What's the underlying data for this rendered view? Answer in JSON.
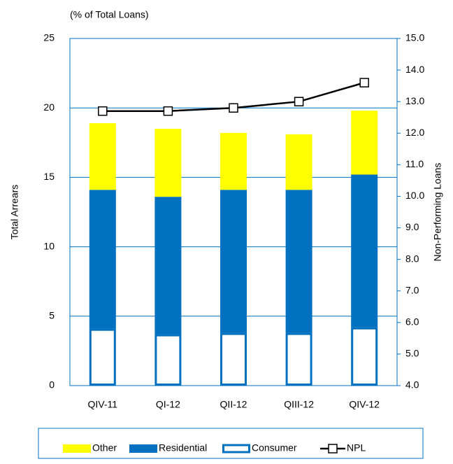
{
  "chart_data": {
    "type": "bar",
    "subtitle": "(% of Total Loans)",
    "y_label": "Total Arrears",
    "y2_label": "Non-Performing Loans",
    "categories": [
      "QIV-11",
      "QI-12",
      "QII-12",
      "QIII-12",
      "QIV-12"
    ],
    "series": [
      {
        "name": "Consumer",
        "color": "#0070c0",
        "style": "outline",
        "values": [
          4.1,
          3.7,
          3.8,
          3.8,
          4.2
        ]
      },
      {
        "name": "Residential",
        "color": "#0070c0",
        "values": [
          10.0,
          9.9,
          10.3,
          10.3,
          11.0
        ]
      },
      {
        "name": "Other",
        "color": "#ffff00",
        "values": [
          4.8,
          4.9,
          4.1,
          4.0,
          4.6
        ]
      },
      {
        "name": "NPL",
        "type": "line",
        "axis": "y2",
        "color": "#000000",
        "marker": "square",
        "values": [
          12.7,
          12.7,
          12.8,
          13.0,
          13.6
        ]
      }
    ],
    "ylim": [
      0,
      25
    ],
    "yticks": [
      0,
      5,
      10,
      15,
      20,
      25
    ],
    "y2lim": [
      4,
      15
    ],
    "y2ticks": [
      {
        "value": 4,
        "label": "4.0"
      },
      {
        "value": 5,
        "label": "5.0"
      },
      {
        "value": 6,
        "label": "6.0"
      },
      {
        "value": 7,
        "label": "7.0"
      },
      {
        "value": 8,
        "label": "8.0"
      },
      {
        "value": 9,
        "label": "9.0"
      },
      {
        "value": 10,
        "label": "10.0"
      },
      {
        "value": 11,
        "label": "11.0"
      },
      {
        "value": 12,
        "label": "12.0"
      },
      {
        "value": 13,
        "label": "13.0"
      },
      {
        "value": 14,
        "label": "14.0"
      },
      {
        "value": 15,
        "label": "15.0"
      }
    ],
    "grid": true,
    "legend": "bottom"
  }
}
